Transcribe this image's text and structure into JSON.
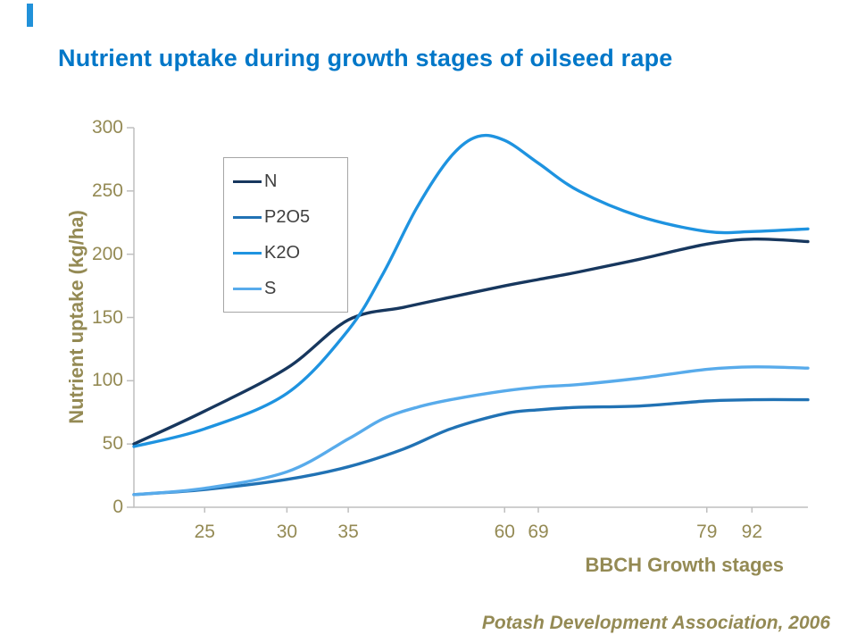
{
  "title": {
    "text": "Nutrient uptake during growth stages of oilseed rape",
    "color": "#0077C8"
  },
  "source": "Potash Development Association, 2006",
  "axes": {
    "text_color": "#948A54",
    "line_color": "#BFBFBF"
  },
  "decor": {
    "corner_accent_color": "#2191D9"
  },
  "legend": {
    "border_color": "#A6A6A6",
    "label_color": "#404040",
    "position": "top-left-inside"
  },
  "chart_data": {
    "type": "line",
    "title": "Nutrient uptake during growth stages of oilseed rape",
    "xlabel": "BBCH Growth stages",
    "ylabel": "Nutrient uptake (kg/ha)",
    "ylim": [
      0,
      300
    ],
    "y_ticks": [
      0,
      50,
      100,
      150,
      200,
      250,
      300
    ],
    "grid": false,
    "legend_position": "top-left-inside",
    "x_ticks": [
      {
        "label": "25",
        "f": 0.105
      },
      {
        "label": "30",
        "f": 0.227
      },
      {
        "label": "35",
        "f": 0.318
      },
      {
        "label": "60",
        "f": 0.55
      },
      {
        "label": "69",
        "f": 0.6
      },
      {
        "label": "79",
        "f": 0.85
      },
      {
        "label": "92",
        "f": 0.917
      }
    ],
    "series": [
      {
        "name": "N",
        "color": "#17375E",
        "points": [
          [
            0,
            50
          ],
          [
            0.105,
            76
          ],
          [
            0.227,
            110
          ],
          [
            0.318,
            148
          ],
          [
            0.4,
            158
          ],
          [
            0.47,
            166
          ],
          [
            0.55,
            175
          ],
          [
            0.6,
            180
          ],
          [
            0.66,
            186
          ],
          [
            0.75,
            196
          ],
          [
            0.85,
            208
          ],
          [
            0.92,
            212
          ],
          [
            1,
            210
          ]
        ]
      },
      {
        "name": "P2O5",
        "color": "#2172B4",
        "points": [
          [
            0,
            10
          ],
          [
            0.105,
            14
          ],
          [
            0.227,
            22
          ],
          [
            0.318,
            32
          ],
          [
            0.4,
            46
          ],
          [
            0.47,
            62
          ],
          [
            0.55,
            74
          ],
          [
            0.6,
            77
          ],
          [
            0.66,
            79
          ],
          [
            0.75,
            80
          ],
          [
            0.85,
            84
          ],
          [
            0.92,
            85
          ],
          [
            1,
            85
          ]
        ]
      },
      {
        "name": "K2O",
        "color": "#1E93E0",
        "points": [
          [
            0,
            48
          ],
          [
            0.105,
            62
          ],
          [
            0.227,
            90
          ],
          [
            0.318,
            140
          ],
          [
            0.37,
            185
          ],
          [
            0.42,
            237
          ],
          [
            0.47,
            277
          ],
          [
            0.51,
            293
          ],
          [
            0.55,
            290
          ],
          [
            0.6,
            272
          ],
          [
            0.66,
            250
          ],
          [
            0.75,
            230
          ],
          [
            0.85,
            218
          ],
          [
            0.92,
            218
          ],
          [
            1,
            220
          ]
        ]
      },
      {
        "name": "S",
        "color": "#58ABEB",
        "points": [
          [
            0,
            10
          ],
          [
            0.105,
            15
          ],
          [
            0.227,
            28
          ],
          [
            0.318,
            54
          ],
          [
            0.37,
            70
          ],
          [
            0.42,
            79
          ],
          [
            0.47,
            85
          ],
          [
            0.55,
            92
          ],
          [
            0.6,
            95
          ],
          [
            0.66,
            97
          ],
          [
            0.75,
            102
          ],
          [
            0.85,
            109
          ],
          [
            0.92,
            111
          ],
          [
            1,
            110
          ]
        ]
      }
    ]
  }
}
